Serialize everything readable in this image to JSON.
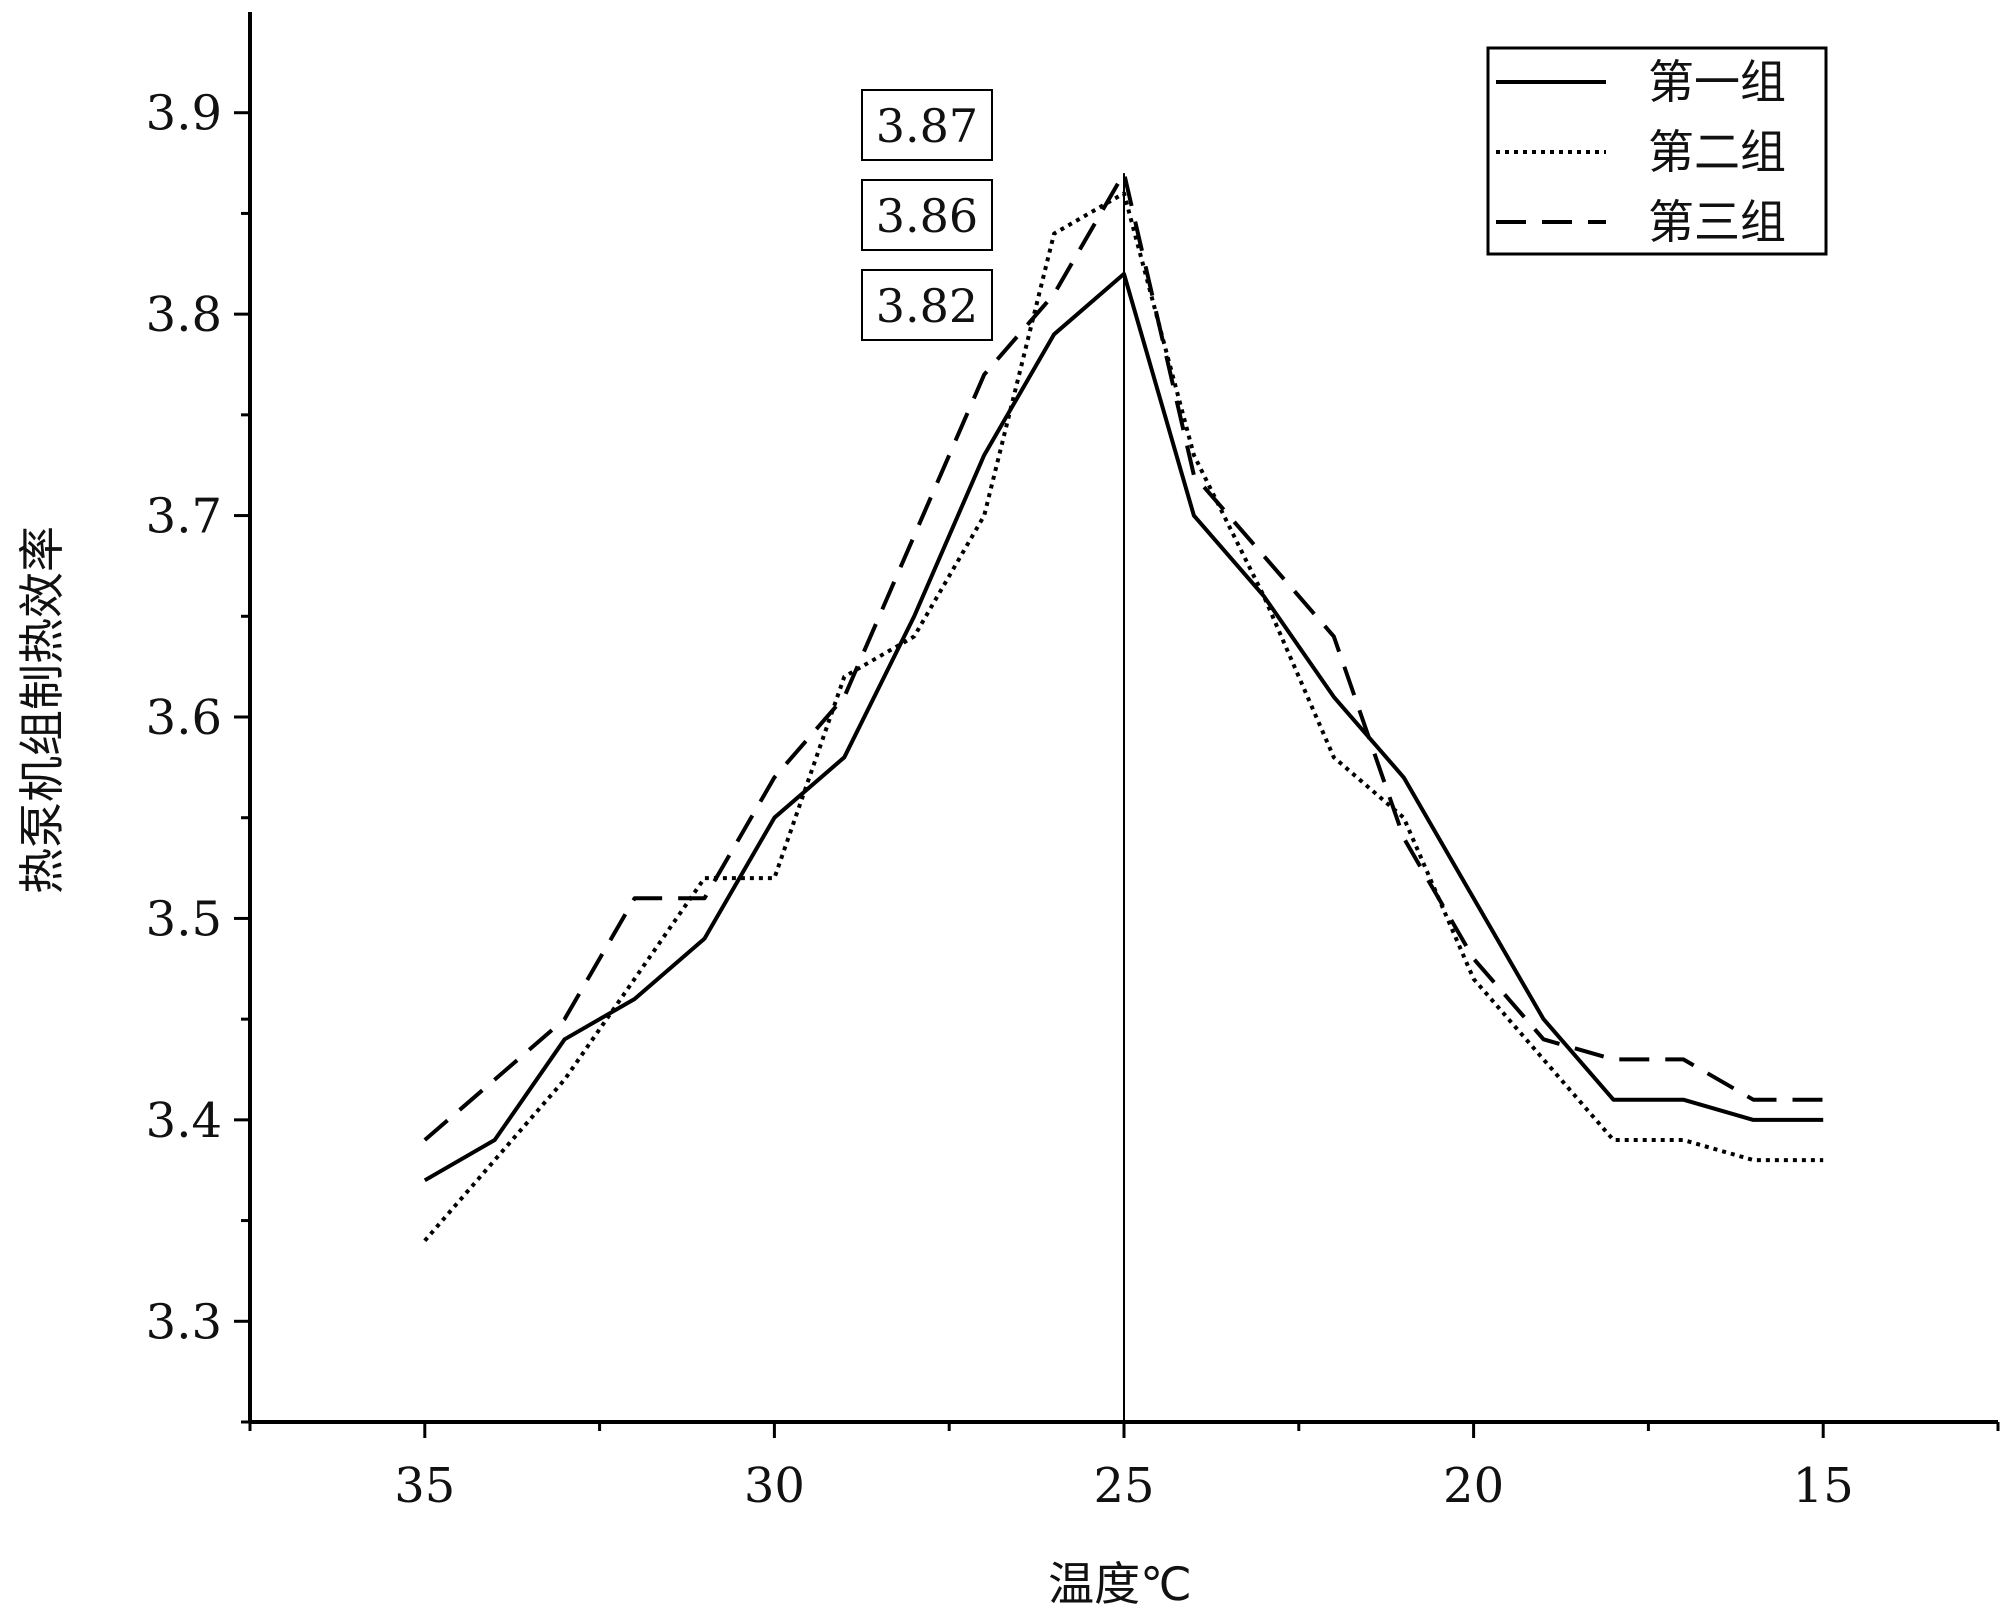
{
  "chart_data": {
    "type": "line",
    "xlabel": "温度℃",
    "ylabel": "热泵机组制热效率",
    "x_reversed": true,
    "xlim": [
      37.5,
      12.5
    ],
    "ylim": [
      3.25,
      3.95
    ],
    "x_ticks": [
      35,
      30,
      25,
      20,
      15
    ],
    "y_ticks": [
      3.3,
      3.4,
      3.5,
      3.6,
      3.7,
      3.8,
      3.9
    ],
    "x_tick_labels": [
      "35",
      "30",
      "25",
      "20",
      "15"
    ],
    "y_tick_labels": [
      "3.3",
      "3.4",
      "3.5",
      "3.6",
      "3.7",
      "3.8",
      "3.9"
    ],
    "legend_position": "top-right",
    "reference_line_x": 25,
    "x": [
      35,
      34,
      33,
      32,
      31,
      30,
      29,
      28,
      27,
      26,
      25,
      24,
      23,
      22,
      21,
      20,
      19,
      18,
      17,
      16,
      15
    ],
    "series": [
      {
        "name": "第一组",
        "style": "solid",
        "values": [
          3.37,
          3.39,
          3.44,
          3.46,
          3.49,
          3.55,
          3.58,
          3.65,
          3.73,
          3.79,
          3.82,
          3.7,
          3.66,
          3.61,
          3.57,
          3.51,
          3.45,
          3.41,
          3.41,
          3.4,
          3.4
        ]
      },
      {
        "name": "第二组",
        "style": "dotted",
        "values": [
          3.34,
          3.38,
          3.42,
          3.47,
          3.52,
          3.52,
          3.62,
          3.64,
          3.7,
          3.84,
          3.86,
          3.73,
          3.66,
          3.58,
          3.55,
          3.47,
          3.43,
          3.39,
          3.39,
          3.38,
          3.38
        ]
      },
      {
        "name": "第三组",
        "style": "dashed",
        "values": [
          3.39,
          3.42,
          3.45,
          3.51,
          3.51,
          3.57,
          3.61,
          3.69,
          3.77,
          3.81,
          3.87,
          3.72,
          3.68,
          3.64,
          3.54,
          3.48,
          3.44,
          3.43,
          3.43,
          3.41,
          3.41
        ]
      }
    ],
    "annotations": [
      "3.87",
      "3.86",
      "3.82"
    ]
  }
}
